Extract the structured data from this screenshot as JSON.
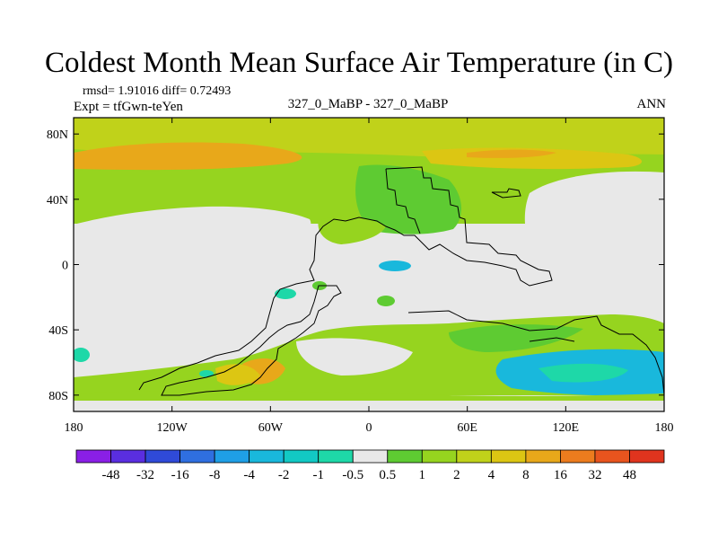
{
  "title": "Coldest Month Mean Surface Air Temperature (in C)",
  "stats": "rmsd= 1.91016 diff= 0.72493",
  "expt": "Expt = tfGwn-teYen",
  "case_label": "327_0_MaBP - 327_0_MaBP",
  "season": "ANN",
  "axes": {
    "x_ticks": [
      "180",
      "120W",
      "60W",
      "0",
      "60E",
      "120E",
      "180"
    ],
    "y_ticks": [
      "80N",
      "40N",
      "0",
      "40S",
      "80S"
    ]
  },
  "colorbar": {
    "labels": [
      "-48",
      "-32",
      "-16",
      "-8",
      "-4",
      "-2",
      "-1",
      "-0.5",
      "0.5",
      "1",
      "2",
      "4",
      "8",
      "16",
      "32",
      "48"
    ],
    "colors": [
      "#8a1fe6",
      "#5a2ee0",
      "#2f4ad8",
      "#2f6fe0",
      "#1f9fe6",
      "#19b8dc",
      "#12c9c4",
      "#1ed8a8",
      "#e8e8e8",
      "#5ecb32",
      "#96d41f",
      "#c0d21a",
      "#dcc613",
      "#e8a81a",
      "#ec7c1e",
      "#e8541e",
      "#e0341e"
    ]
  },
  "map_colors": {
    "ocean_neutral": "#e8e8e8",
    "warm_light": "#96d41f",
    "warm_mid": "#c0d21a",
    "warm_yellow": "#dcc613",
    "warm_orange": "#e8a81a",
    "green": "#5ecb32",
    "cool": "#19b8dc",
    "cool_light": "#1ed8a8"
  }
}
